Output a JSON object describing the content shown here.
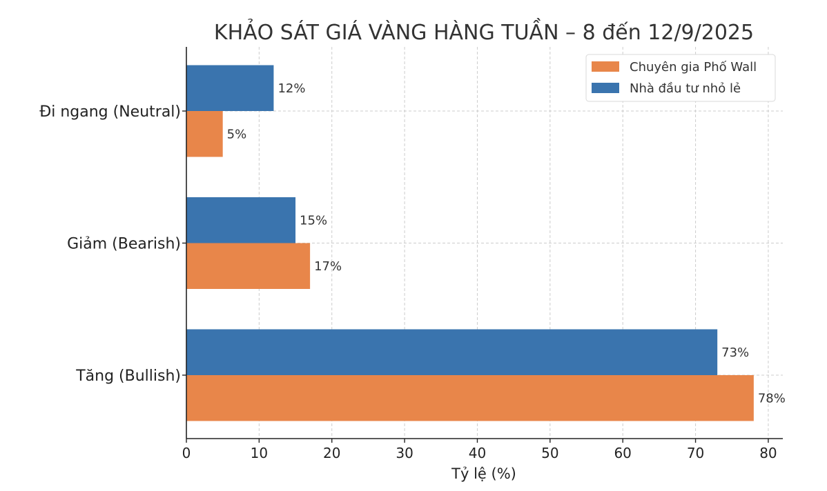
{
  "chart_data": {
    "type": "bar",
    "orientation": "horizontal",
    "title": "KHẢO SÁT GIÁ VÀNG HÀNG TUẦN – 8 đến 12/9/2025",
    "xlabel": "Tỷ lệ (%)",
    "ylabel": "",
    "categories": [
      "Tăng (Bullish)",
      "Giảm (Bearish)",
      "Đi ngang (Neutral)"
    ],
    "series": [
      {
        "name": "Chuyên gia Phố Wall",
        "color": "#E8864A",
        "values": [
          78,
          17,
          5
        ],
        "labels": [
          "78%",
          "17%",
          "5%"
        ]
      },
      {
        "name": "Nhà đầu tư nhỏ lẻ",
        "color": "#3A74AE",
        "values": [
          73,
          15,
          12
        ],
        "labels": [
          "73%",
          "15%",
          "12%"
        ]
      }
    ],
    "xlim": [
      0,
      82
    ],
    "xticks": [
      0,
      10,
      20,
      30,
      40,
      50,
      60,
      70,
      80
    ],
    "grid": true,
    "legend_position": "top-right"
  }
}
